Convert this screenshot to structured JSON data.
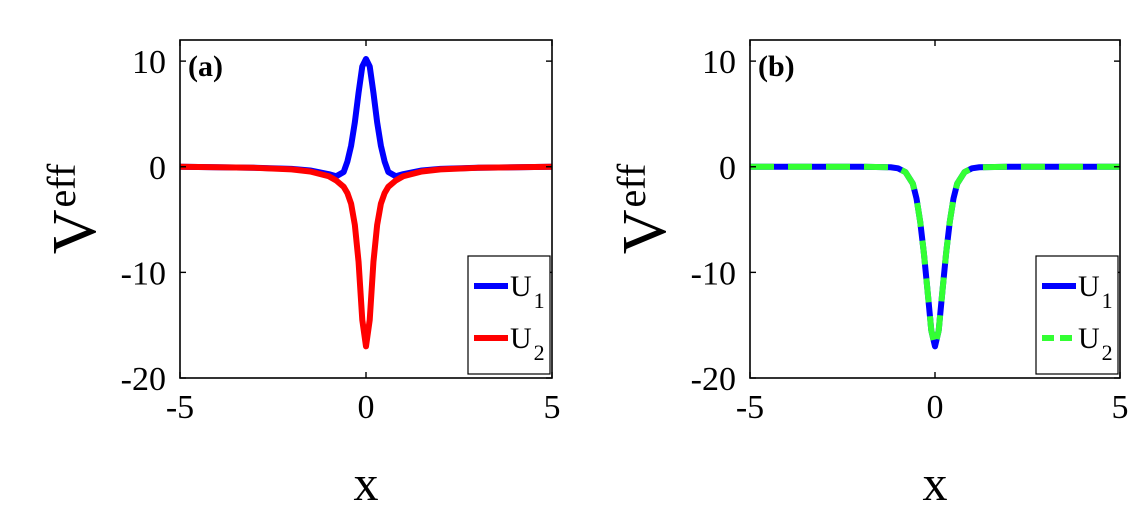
{
  "chart_data": [
    {
      "type": "line",
      "panel_label": "(a)",
      "xlabel": "x",
      "ylabel": "V",
      "ylabel_subscript": "eff",
      "xlim": [
        -5,
        5
      ],
      "ylim": [
        -20,
        12
      ],
      "xticks": [
        -5,
        0,
        5
      ],
      "yticks": [
        10,
        0,
        -10,
        -20
      ],
      "grid": false,
      "legend_position": "bottom-right",
      "series": [
        {
          "name": "U",
          "name_subscript": "1",
          "color": "#0000ff",
          "style": "solid",
          "x": [
            -5,
            -3,
            -2,
            -1.5,
            -1,
            -0.8,
            -0.6,
            -0.5,
            -0.4,
            -0.3,
            -0.2,
            -0.1,
            0,
            0.1,
            0.2,
            0.3,
            0.4,
            0.5,
            0.6,
            0.8,
            1,
            1.5,
            2,
            3,
            5
          ],
          "y": [
            0,
            -0.1,
            -0.2,
            -0.35,
            -0.7,
            -0.9,
            -0.5,
            0.5,
            2.0,
            4.2,
            7.0,
            9.5,
            10.2,
            9.5,
            7.0,
            4.2,
            2.0,
            0.5,
            -0.5,
            -0.9,
            -0.7,
            -0.35,
            -0.2,
            -0.1,
            0
          ]
        },
        {
          "name": "U",
          "name_subscript": "2",
          "color": "#ff0000",
          "style": "solid",
          "x": [
            -5,
            -3,
            -2,
            -1.5,
            -1,
            -0.8,
            -0.6,
            -0.5,
            -0.4,
            -0.3,
            -0.2,
            -0.1,
            0,
            0.1,
            0.2,
            0.3,
            0.4,
            0.5,
            0.6,
            0.8,
            1,
            1.5,
            2,
            3,
            5
          ],
          "y": [
            0,
            -0.1,
            -0.25,
            -0.45,
            -0.9,
            -1.3,
            -1.9,
            -2.5,
            -3.5,
            -5.5,
            -9.0,
            -14.5,
            -17.0,
            -14.5,
            -9.0,
            -5.5,
            -3.5,
            -2.5,
            -1.9,
            -1.3,
            -0.9,
            -0.45,
            -0.25,
            -0.1,
            0
          ]
        }
      ]
    },
    {
      "type": "line",
      "panel_label": "(b)",
      "xlabel": "x",
      "ylabel": "V",
      "ylabel_subscript": "eff",
      "xlim": [
        -5,
        5
      ],
      "ylim": [
        -20,
        12
      ],
      "xticks": [
        -5,
        0,
        5
      ],
      "yticks": [
        10,
        0,
        -10,
        -20
      ],
      "grid": false,
      "legend_position": "bottom-right",
      "series": [
        {
          "name": "U",
          "name_subscript": "1",
          "color": "#0000ff",
          "style": "solid",
          "x": [
            -5,
            -2,
            -1.2,
            -1,
            -0.8,
            -0.6,
            -0.5,
            -0.4,
            -0.3,
            -0.2,
            -0.1,
            0,
            0.1,
            0.2,
            0.3,
            0.4,
            0.5,
            0.6,
            0.8,
            1,
            1.2,
            2,
            5
          ],
          "y": [
            0,
            0,
            -0.05,
            -0.15,
            -0.5,
            -1.6,
            -3.0,
            -5.2,
            -8.2,
            -11.8,
            -15.5,
            -17.0,
            -15.5,
            -11.8,
            -8.2,
            -5.2,
            -3.0,
            -1.6,
            -0.5,
            -0.15,
            -0.05,
            0,
            0
          ]
        },
        {
          "name": "U",
          "name_subscript": "2",
          "color": "#33ff33",
          "style": "dashed",
          "x": [
            -5,
            -2,
            -1.2,
            -1,
            -0.8,
            -0.6,
            -0.5,
            -0.4,
            -0.3,
            -0.2,
            -0.1,
            0,
            0.1,
            0.2,
            0.3,
            0.4,
            0.5,
            0.6,
            0.8,
            1,
            1.2,
            2,
            5
          ],
          "y": [
            0,
            0,
            -0.05,
            -0.15,
            -0.5,
            -1.6,
            -3.0,
            -5.2,
            -8.2,
            -11.8,
            -15.5,
            -17.0,
            -15.5,
            -11.8,
            -8.2,
            -5.2,
            -3.0,
            -1.6,
            -0.5,
            -0.15,
            -0.05,
            0,
            0
          ]
        }
      ]
    }
  ]
}
